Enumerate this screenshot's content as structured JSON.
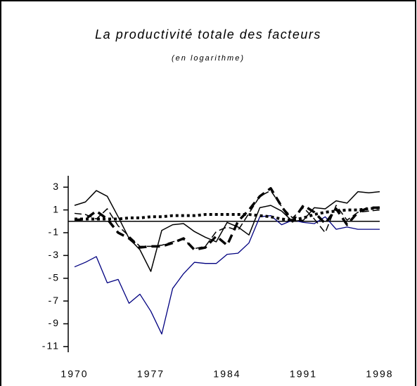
{
  "chart_data": {
    "type": "line",
    "title": "La productivité totale des facteurs",
    "subtitle": "(en logarithme)",
    "x": [
      1970,
      1971,
      1972,
      1973,
      1974,
      1975,
      1976,
      1977,
      1978,
      1979,
      1980,
      1981,
      1982,
      1983,
      1984,
      1985,
      1986,
      1987,
      1988,
      1989,
      1990,
      1991,
      1992,
      1993,
      1994,
      1995,
      1996,
      1997,
      1998
    ],
    "xlim": [
      1970,
      1998
    ],
    "xticks": [
      1970,
      1977,
      1984,
      1991,
      1998
    ],
    "ylim": [
      -11.5,
      4
    ],
    "yticks": [
      3,
      1,
      -1,
      -3,
      -5,
      -7,
      -9,
      -11
    ],
    "series": [
      {
        "color": "#000080",
        "width": 1.3,
        "dash": "none",
        "values": [
          -4.0,
          -3.6,
          -3.1,
          -5.4,
          -5.1,
          -7.2,
          -6.4,
          -7.9,
          -9.9,
          -5.9,
          -4.6,
          -3.6,
          -3.7,
          -3.7,
          -2.9,
          -2.8,
          -1.9,
          0.4,
          0.5,
          -0.3,
          0.1,
          -0.1,
          -0.2,
          0.4,
          -0.7,
          -0.5,
          -0.7,
          -0.7,
          -0.7
        ]
      },
      {
        "color": "#000000",
        "width": 1.5,
        "dash": "none",
        "values": [
          1.4,
          1.7,
          2.7,
          2.2,
          0.4,
          -1.5,
          -2.5,
          -4.4,
          -0.8,
          -0.3,
          -0.2,
          -0.9,
          -1.4,
          -1.8,
          -0.1,
          -0.5,
          -1.2,
          1.2,
          1.4,
          0.9,
          0.0,
          0.1,
          1.2,
          1.1,
          1.8,
          1.6,
          2.6,
          2.5,
          2.6
        ]
      },
      {
        "color": "#000000",
        "width": 1.5,
        "dash": "10,5",
        "values": [
          0.7,
          0.6,
          0.2,
          1.1,
          -0.4,
          -1.3,
          -2.2,
          -2.2,
          -2.1,
          -1.8,
          -1.6,
          -2.4,
          -2.2,
          -0.9,
          -0.5,
          -0.8,
          0.7,
          2.2,
          2.7,
          1.3,
          0.3,
          1.2,
          0.2,
          -1.0,
          1.4,
          0.1,
          0.8,
          0.9,
          1.0
        ]
      },
      {
        "color": "#000000",
        "width": 3.5,
        "dash": "12,7",
        "values": [
          0.1,
          0.2,
          0.9,
          0.2,
          -1.0,
          -1.5,
          -2.3,
          -2.2,
          -2.2,
          -1.9,
          -1.5,
          -2.5,
          -2.3,
          -1.3,
          -2.1,
          0.0,
          1.0,
          2.2,
          2.9,
          1.3,
          0.0,
          1.4,
          0.8,
          -0.2,
          1.1,
          -0.3,
          0.8,
          1.2,
          1.2
        ]
      },
      {
        "color": "#000000",
        "width": 4,
        "dash": "4,4",
        "values": [
          0.2,
          0.2,
          0.2,
          0.2,
          0.2,
          0.3,
          0.3,
          0.4,
          0.4,
          0.5,
          0.5,
          0.5,
          0.6,
          0.6,
          0.6,
          0.6,
          0.6,
          0.5,
          0.4,
          0.2,
          0.1,
          0.3,
          0.6,
          0.8,
          0.9,
          1.0,
          1.0,
          1.1,
          1.2
        ]
      }
    ]
  }
}
